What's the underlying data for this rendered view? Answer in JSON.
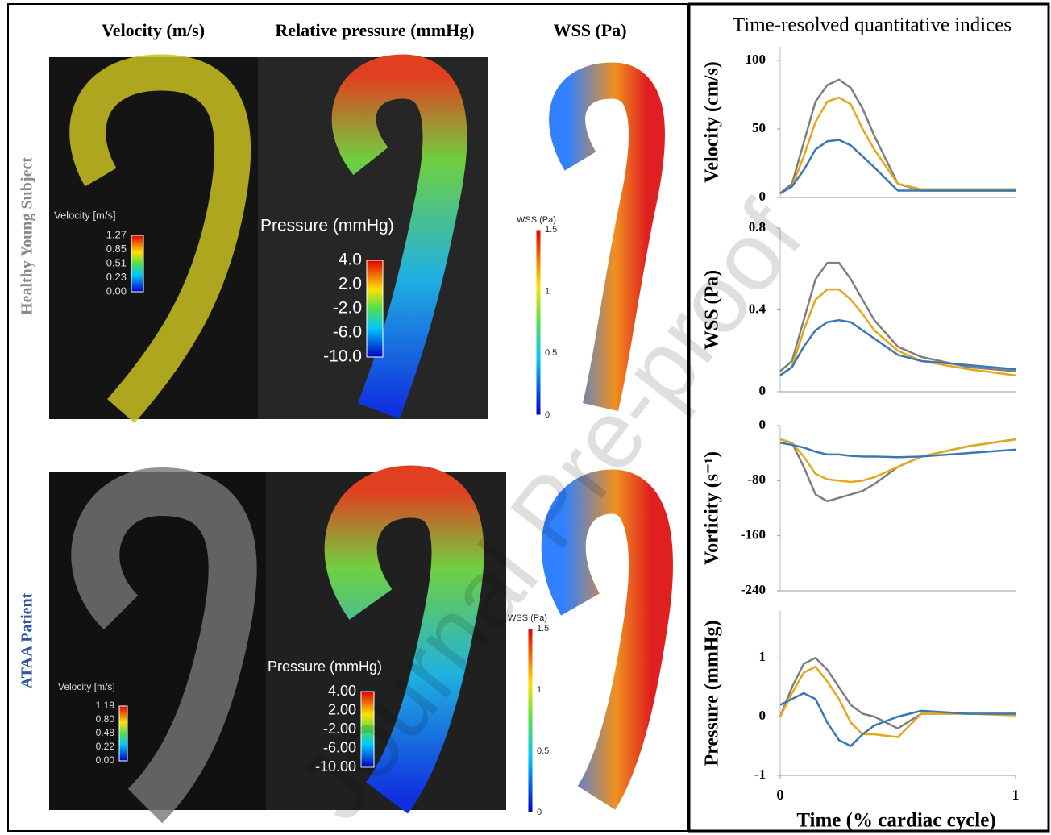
{
  "figure": {
    "columns": [
      "Velocity (m/s)",
      "Relative pressure (mmHg)",
      "WSS (Pa)"
    ],
    "rows": [
      "Healthy Young Subject",
      "ATAA Patient"
    ],
    "panels": [
      {
        "velocity_title": "Velocity [m/s]",
        "velocity_ticks": [
          "1.27",
          "0.85",
          "0.51",
          "0.23",
          "0.00"
        ],
        "pressure_title": "Pressure (mmHg)",
        "pressure_ticks": [
          "4.0",
          "2.0",
          "-2.0",
          "-6.0",
          "-10.0"
        ],
        "wss_title": "WSS (Pa)",
        "wss_ticks": [
          "1.5",
          "1",
          "0.5",
          "0"
        ]
      },
      {
        "velocity_title": "Velocity [m/s]",
        "velocity_ticks": [
          "1.19",
          "0.80",
          "0.48",
          "0.22",
          "0.00"
        ],
        "pressure_title": "Pressure (mmHg)",
        "pressure_ticks": [
          "4.00",
          "2.00",
          "-2.00",
          "-6.00",
          "-10.00"
        ],
        "wss_title": "WSS (Pa)",
        "wss_ticks": [
          "1.5",
          "1",
          "0.5",
          "0"
        ]
      }
    ],
    "right_title": "Time-resolved quantitative indices",
    "watermark": "Journal Pre-proof"
  },
  "chart_data": [
    {
      "type": "line",
      "ylabel": "Velocity (cm/s)",
      "x": [
        0,
        0.05,
        0.1,
        0.15,
        0.2,
        0.25,
        0.3,
        0.35,
        0.4,
        0.5,
        0.6,
        0.8,
        1
      ],
      "xlim": [
        0,
        1
      ],
      "ylim": [
        0,
        110
      ],
      "yticks": [
        0,
        50,
        100
      ],
      "series": [
        {
          "color": "#7f7f7f",
          "values": [
            3,
            10,
            40,
            70,
            82,
            86,
            80,
            65,
            45,
            10,
            5,
            5,
            5
          ]
        },
        {
          "color": "#e3a81c",
          "values": [
            3,
            8,
            30,
            55,
            70,
            73,
            68,
            50,
            35,
            10,
            6,
            6,
            6
          ]
        },
        {
          "color": "#3b78b3",
          "values": [
            3,
            8,
            20,
            35,
            41,
            42,
            38,
            30,
            22,
            5,
            5,
            5,
            5
          ]
        }
      ]
    },
    {
      "type": "line",
      "ylabel": "WSS (Pa)",
      "x": [
        0,
        0.05,
        0.1,
        0.15,
        0.2,
        0.25,
        0.3,
        0.35,
        0.4,
        0.5,
        0.6,
        0.8,
        1
      ],
      "xlim": [
        0,
        1
      ],
      "ylim": [
        0,
        0.8
      ],
      "yticks": [
        0,
        0.4,
        0.8
      ],
      "series": [
        {
          "color": "#7f7f7f",
          "values": [
            0.1,
            0.15,
            0.35,
            0.55,
            0.63,
            0.63,
            0.55,
            0.45,
            0.35,
            0.22,
            0.17,
            0.12,
            0.1
          ]
        },
        {
          "color": "#e3a81c",
          "values": [
            0.08,
            0.12,
            0.3,
            0.45,
            0.5,
            0.5,
            0.45,
            0.38,
            0.3,
            0.2,
            0.15,
            0.11,
            0.08
          ]
        },
        {
          "color": "#3b78b3",
          "values": [
            0.08,
            0.12,
            0.22,
            0.3,
            0.34,
            0.35,
            0.34,
            0.3,
            0.26,
            0.18,
            0.15,
            0.13,
            0.11
          ]
        }
      ]
    },
    {
      "type": "line",
      "ylabel": "Vorticity (s⁻¹)",
      "x": [
        0,
        0.05,
        0.1,
        0.15,
        0.2,
        0.25,
        0.3,
        0.35,
        0.4,
        0.5,
        0.6,
        0.8,
        1
      ],
      "xlim": [
        0,
        1
      ],
      "ylim": [
        -240,
        0
      ],
      "yticks": [
        -240,
        -160,
        -80,
        0
      ],
      "series": [
        {
          "color": "#7f7f7f",
          "values": [
            -20,
            -25,
            -60,
            -100,
            -110,
            -105,
            -100,
            -95,
            -85,
            -60,
            -45,
            -30,
            -20
          ]
        },
        {
          "color": "#e3a81c",
          "values": [
            -20,
            -25,
            -45,
            -70,
            -78,
            -80,
            -82,
            -80,
            -75,
            -60,
            -45,
            -30,
            -20
          ]
        },
        {
          "color": "#3b78b3",
          "values": [
            -25,
            -28,
            -32,
            -38,
            -42,
            -42,
            -44,
            -45,
            -45,
            -46,
            -45,
            -40,
            -35
          ]
        }
      ]
    },
    {
      "type": "line",
      "ylabel": "Pressure (mmHg)",
      "xlabel": "Time (% cardiac cycle)",
      "x": [
        0,
        0.05,
        0.1,
        0.15,
        0.2,
        0.25,
        0.3,
        0.35,
        0.4,
        0.5,
        0.6,
        0.8,
        1
      ],
      "xlim": [
        0,
        1
      ],
      "xticks": [
        0,
        1
      ],
      "ylim": [
        -1,
        1.8
      ],
      "yticks": [
        -1,
        0,
        1
      ],
      "series": [
        {
          "color": "#7f7f7f",
          "values": [
            0,
            0.5,
            0.9,
            1.0,
            0.8,
            0.5,
            0.2,
            0.05,
            0,
            -0.2,
            0.05,
            0.05,
            0.05
          ]
        },
        {
          "color": "#e3a81c",
          "values": [
            0,
            0.4,
            0.75,
            0.85,
            0.6,
            0.3,
            -0.1,
            -0.3,
            -0.3,
            -0.35,
            0.05,
            0.05,
            0.02
          ]
        },
        {
          "color": "#3b78b3",
          "values": [
            0.2,
            0.3,
            0.4,
            0.3,
            -0.1,
            -0.4,
            -0.5,
            -0.3,
            -0.15,
            0,
            0.1,
            0.05,
            0.05
          ]
        }
      ]
    }
  ]
}
